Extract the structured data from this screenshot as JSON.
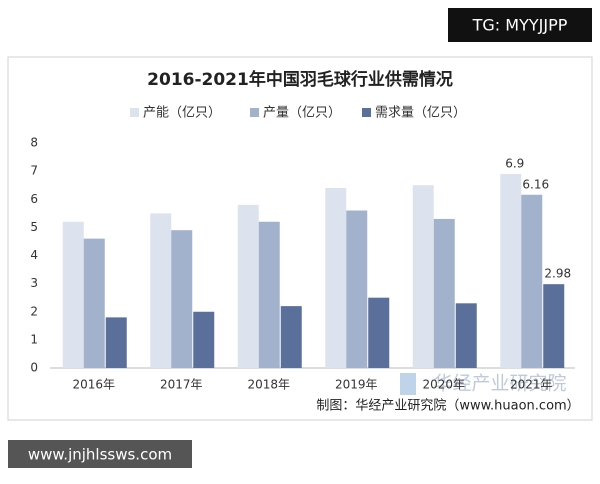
{
  "chart_data": {
    "type": "bar",
    "title": "2016-2021年中国羽毛球行业供需情况",
    "categories": [
      "2016年",
      "2017年",
      "2018年",
      "2019年",
      "2020年",
      "2021年"
    ],
    "series": [
      {
        "name": "产能（亿只）",
        "color": "#dde3ee",
        "values": [
          5.2,
          5.5,
          5.8,
          6.4,
          6.5,
          6.9
        ],
        "value_labels": [
          null,
          null,
          null,
          null,
          null,
          "6.9"
        ]
      },
      {
        "name": "产量（亿只）",
        "color": "#a3b2cc",
        "values": [
          4.6,
          4.9,
          5.2,
          5.6,
          5.3,
          6.16
        ],
        "value_labels": [
          null,
          null,
          null,
          null,
          null,
          "6.16"
        ]
      },
      {
        "name": "需求量（亿只）",
        "color": "#5a6f9a",
        "values": [
          1.8,
          2.0,
          2.2,
          2.5,
          2.3,
          2.98
        ],
        "value_labels": [
          null,
          null,
          null,
          null,
          null,
          "2.98"
        ]
      }
    ],
    "ylim": [
      0,
      8
    ],
    "yticks": [
      0,
      1,
      2,
      3,
      4,
      5,
      6,
      7,
      8
    ],
    "grid": false,
    "legend": "top",
    "source": "制图：华经产业研究院（www.huaon.com）"
  },
  "watermarks": {
    "top_right": "TG: MYYJJPP",
    "bottom_left": "www.jnjhlssws.com",
    "overlay": "华经产业研究院"
  }
}
